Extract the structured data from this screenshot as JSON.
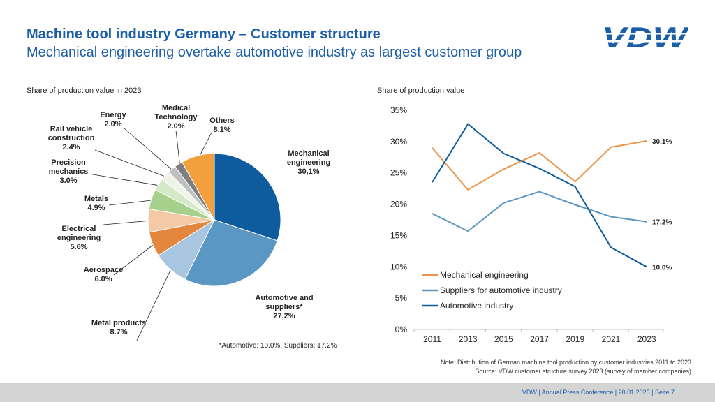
{
  "header": {
    "title": "Machine tool industry Germany – Customer structure",
    "subtitle": "Mechanical engineering overtake automotive industry as largest customer group",
    "logo_text": "VDW",
    "logo_color": "#1b5ea8"
  },
  "chart_data": [
    {
      "type": "pie",
      "caption": "Share of production value in 2023",
      "footnote": "*Automotive: 10.0%, Suppliers: 17.2%",
      "slices": [
        {
          "name": "Mechanical engineering",
          "lines": [
            "Mechanical",
            "engineering",
            "30,1%"
          ],
          "value": 30.1,
          "color": "#0e5c9e"
        },
        {
          "name": "Automotive and suppliers*",
          "lines": [
            "Automotive and",
            "suppliers*",
            "27,2%"
          ],
          "value": 27.2,
          "color": "#5b97c3"
        },
        {
          "name": "Metal products",
          "lines": [
            "Metal products",
            "8.7%"
          ],
          "value": 8.7,
          "color": "#a9c6e0"
        },
        {
          "name": "Aerospace",
          "lines": [
            "Aerospace",
            "6.0%"
          ],
          "value": 6.0,
          "color": "#e2873d"
        },
        {
          "name": "Electrical engineering",
          "lines": [
            "Electrical",
            "engineering",
            "5.6%"
          ],
          "value": 5.6,
          "color": "#f4c9a6"
        },
        {
          "name": "Metals",
          "lines": [
            "Metals",
            "4.9%"
          ],
          "value": 4.9,
          "color": "#a8d08d"
        },
        {
          "name": "Precision mechanics",
          "lines": [
            "Precision",
            "mechanics",
            "3.0%"
          ],
          "value": 3.0,
          "color": "#d5e8c7"
        },
        {
          "name": "Rail vehicle construction",
          "lines": [
            "Rail vehicle",
            "construction",
            "2.4%"
          ],
          "value": 2.4,
          "color": "#eef5e8"
        },
        {
          "name": "Energy",
          "lines": [
            "Energy",
            "2.0%"
          ],
          "value": 2.0,
          "color": "#bfbfbf"
        },
        {
          "name": "Medical Technology",
          "lines": [
            "Medical",
            "Technology",
            "2.0%"
          ],
          "value": 2.0,
          "color": "#7f7f7f"
        },
        {
          "name": "Others",
          "lines": [
            "Others",
            "8.1%"
          ],
          "value": 8.1,
          "color": "#f2a03d"
        }
      ]
    },
    {
      "type": "line",
      "caption": "Share of production value",
      "x": [
        "2011",
        "2013",
        "2015",
        "2017",
        "2019",
        "2021",
        "2023"
      ],
      "ylim": [
        0,
        35
      ],
      "yticks": [
        "0%",
        "5%",
        "10%",
        "15%",
        "20%",
        "25%",
        "30%",
        "35%"
      ],
      "series": [
        {
          "name": "Mechanical engineering",
          "color": "#e8954a",
          "values": [
            29.0,
            22.3,
            25.6,
            28.2,
            23.6,
            29.1,
            30.1
          ],
          "end_label": "30.1%"
        },
        {
          "name": "Suppliers for automotive industry",
          "color": "#5b97c3",
          "values": [
            18.5,
            15.7,
            20.2,
            22.0,
            19.9,
            18.0,
            17.2
          ],
          "end_label": "17.2%"
        },
        {
          "name": "Automotive industry",
          "color": "#0e5c9e",
          "values": [
            23.5,
            32.8,
            28.1,
            25.7,
            22.8,
            13.1,
            10.0
          ],
          "end_label": "10.0%"
        }
      ]
    }
  ],
  "note": {
    "line1": "Note: Distribution of German machine tool production by customer industries 2011 to 2023",
    "line2": "Source: VDW customer structure survey 2023 (survey of member companies)"
  },
  "footer": {
    "text": "VDW  |  Annual Press Conference  |     20.01.2025     |  Seite  7"
  }
}
